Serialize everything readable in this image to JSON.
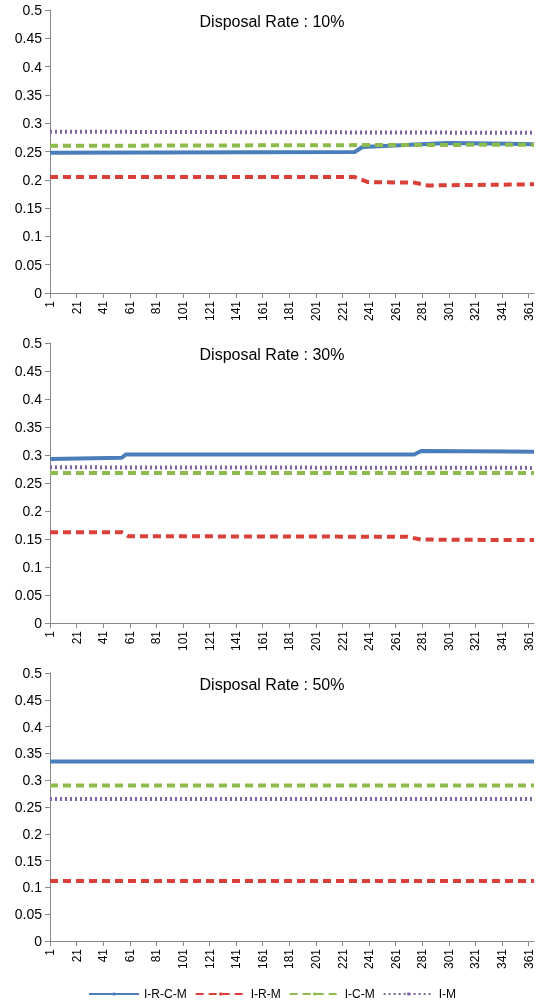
{
  "chart_data": [
    {
      "type": "line",
      "title": "Disposal Rate : 10%",
      "xlim": [
        1,
        365
      ],
      "xticks": [
        1,
        21,
        41,
        61,
        81,
        101,
        121,
        141,
        161,
        181,
        201,
        221,
        241,
        261,
        281,
        301,
        321,
        341,
        361
      ],
      "ylim": [
        0,
        0.5
      ],
      "yticks": [
        0,
        0.05,
        0.1,
        0.15,
        0.2,
        0.25,
        0.3,
        0.35,
        0.4,
        0.45,
        0.5
      ],
      "grid": false,
      "legend": false,
      "series": [
        {
          "color": "#4a7ebb",
          "line_style": "solid",
          "x": [
            1,
            230,
            236,
            300,
            365
          ],
          "values": [
            0.248,
            0.249,
            0.258,
            0.265,
            0.263
          ]
        },
        {
          "color": "#d9403a",
          "line_style": "dashed",
          "x": [
            1,
            230,
            240,
            275,
            285,
            365
          ],
          "values": [
            0.205,
            0.205,
            0.196,
            0.195,
            0.19,
            0.192
          ]
        },
        {
          "color": "#8dbb4c",
          "line_style": "dashed",
          "x": [
            1,
            365
          ],
          "values": [
            0.26,
            0.262
          ]
        },
        {
          "color": "#8064a2",
          "line_style": "dotted",
          "x": [
            1,
            365
          ],
          "values": [
            0.285,
            0.283
          ]
        }
      ]
    },
    {
      "type": "line",
      "title": "Disposal Rate : 30%",
      "xlim": [
        1,
        365
      ],
      "xticks": [
        1,
        21,
        41,
        61,
        81,
        101,
        121,
        141,
        161,
        181,
        201,
        221,
        241,
        261,
        281,
        301,
        321,
        341,
        361
      ],
      "ylim": [
        0,
        0.5
      ],
      "yticks": [
        0,
        0.05,
        0.1,
        0.15,
        0.2,
        0.25,
        0.3,
        0.35,
        0.4,
        0.45,
        0.5
      ],
      "grid": false,
      "legend": false,
      "series": [
        {
          "color": "#4a7ebb",
          "line_style": "solid",
          "x": [
            1,
            55,
            58,
            275,
            280,
            365
          ],
          "values": [
            0.293,
            0.295,
            0.301,
            0.301,
            0.307,
            0.306
          ]
        },
        {
          "color": "#d9403a",
          "line_style": "dashed",
          "x": [
            1,
            55,
            60,
            270,
            280,
            365
          ],
          "values": [
            0.162,
            0.162,
            0.155,
            0.154,
            0.149,
            0.148
          ]
        },
        {
          "color": "#8dbb4c",
          "line_style": "dashed",
          "x": [
            1,
            365
          ],
          "values": [
            0.268,
            0.268
          ]
        },
        {
          "color": "#8064a2",
          "line_style": "dotted",
          "x": [
            1,
            365
          ],
          "values": [
            0.278,
            0.277
          ]
        }
      ]
    },
    {
      "type": "line",
      "title": "Disposal Rate : 50%",
      "xlim": [
        1,
        365
      ],
      "xticks": [
        1,
        21,
        41,
        61,
        81,
        101,
        121,
        141,
        161,
        181,
        201,
        221,
        241,
        261,
        281,
        301,
        321,
        341,
        361
      ],
      "ylim": [
        0,
        0.5
      ],
      "yticks": [
        0,
        0.05,
        0.1,
        0.15,
        0.2,
        0.25,
        0.3,
        0.35,
        0.4,
        0.45,
        0.5
      ],
      "grid": false,
      "legend": "bottom",
      "series": [
        {
          "name": "I-R-C-M",
          "color": "#4a7ebb",
          "line_style": "solid",
          "x": [
            1,
            365
          ],
          "values": [
            0.335,
            0.335
          ]
        },
        {
          "name": "I-R-M",
          "color": "#d9403a",
          "line_style": "dashed",
          "x": [
            1,
            365
          ],
          "values": [
            0.112,
            0.112
          ]
        },
        {
          "name": "I-C-M",
          "color": "#8dbb4c",
          "line_style": "dashed",
          "x": [
            1,
            365
          ],
          "values": [
            0.29,
            0.29
          ]
        },
        {
          "name": "I-M",
          "color": "#8064a2",
          "line_style": "dotted",
          "x": [
            1,
            365
          ],
          "values": [
            0.265,
            0.265
          ]
        }
      ]
    }
  ]
}
